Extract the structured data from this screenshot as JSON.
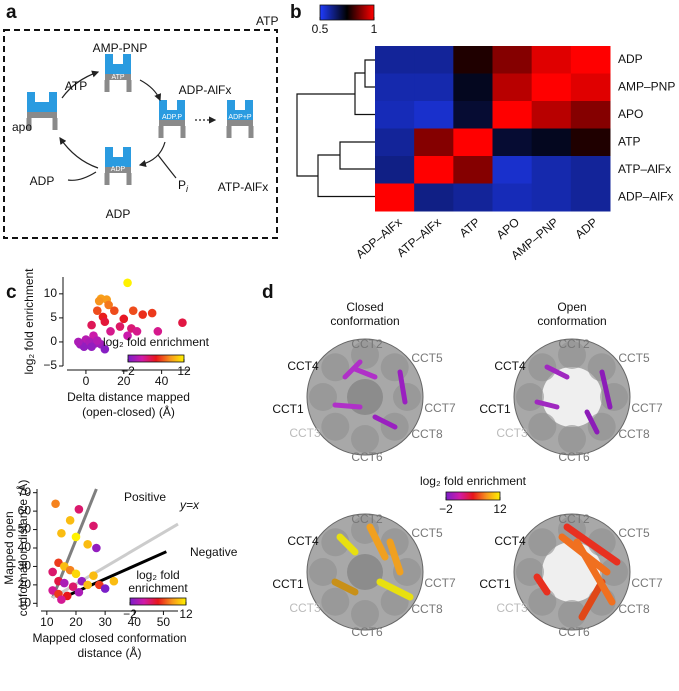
{
  "panel_labels": [
    "a",
    "b",
    "c",
    "d"
  ],
  "panel_a": {
    "corner_label": "ATP",
    "states": [
      "AMP-PNP",
      "ATP",
      "ADP-AlFx",
      "apo",
      "ATP-AlFx",
      "ADP",
      "ADP"
    ],
    "phosphate": "P",
    "phosphate_sub": "i",
    "inner_labels": [
      "ATP",
      "ADP.P",
      "ADP+P",
      "ADP"
    ]
  },
  "chart_data": [
    {
      "type": "heatmap",
      "x_labels": [
        "ADP–AlFx",
        "ATP–AlFx",
        "ATP",
        "APO",
        "AMP–PNP",
        "ADP"
      ],
      "y_labels": [
        "ADP",
        "AMP–PNP",
        "APO",
        "ATP",
        "ATP–AlFx",
        "ADP–AlFx"
      ],
      "values": [
        [
          0.6,
          0.6,
          0.78,
          0.88,
          0.97,
          1
        ],
        [
          0.58,
          0.58,
          0.72,
          0.93,
          1,
          0.97
        ],
        [
          0.57,
          0.55,
          0.7,
          1,
          0.93,
          0.88
        ],
        [
          0.6,
          0.88,
          1,
          0.7,
          0.72,
          0.78
        ],
        [
          0.62,
          1,
          0.88,
          0.55,
          0.58,
          0.6
        ],
        [
          1,
          0.62,
          0.6,
          0.57,
          0.58,
          0.6
        ]
      ],
      "colormap": [
        "#1f3cff",
        "#000000",
        "#ff0000"
      ],
      "colorbar": {
        "lim": [
          0.5,
          1
        ],
        "ticks": [
          0.5,
          1
        ]
      }
    },
    {
      "type": "scatter",
      "xlabel": [
        "Delta distance mapped",
        "(open-closed) (Å)"
      ],
      "ylabel": [
        "log₂ fold enrichment"
      ],
      "xlim": [
        -10,
        55
      ],
      "ylim": [
        -5,
        13.5
      ],
      "xticks": [
        0,
        20,
        40
      ],
      "yticks": [
        {
          "value": -5,
          "label": "−5"
        },
        0,
        5,
        10
      ],
      "x": [
        22,
        8,
        11,
        7,
        12,
        6,
        15,
        25,
        35,
        9,
        30,
        20,
        51,
        10,
        3,
        18,
        24,
        13,
        27,
        38,
        4,
        22,
        0,
        -3,
        -1,
        2,
        5,
        8,
        3,
        10,
        -4,
        6
      ],
      "values": [
        12.3,
        9,
        8.8,
        8.5,
        7.7,
        6.5,
        6.5,
        6.5,
        6,
        5.2,
        5.7,
        4.8,
        4,
        4.2,
        3.5,
        3.2,
        2.8,
        2.2,
        2.2,
        2.2,
        1.3,
        1.3,
        0.5,
        -0.5,
        -1,
        0,
        -0.3,
        -0.5,
        -1,
        -1.5,
        0,
        0.3
      ],
      "colormap": [
        "#7a1fc8",
        "#d01aa8",
        "#e8161b",
        "#f7941d",
        "#fff200"
      ],
      "colorbar": {
        "label": [
          "log₂ fold enrichment"
        ],
        "lim": [
          -2,
          12
        ],
        "ticks": [
          {
            "value": -2,
            "label": "−2"
          },
          12
        ]
      }
    },
    {
      "type": "scatter",
      "xlabel": [
        "Mapped closed conformation",
        "distance (Å)"
      ],
      "ylabel": [
        "Mapped open",
        "conformation distance (Å)"
      ],
      "xlim": [
        8,
        55
      ],
      "ylim": [
        8,
        72
      ],
      "xticks": [
        10,
        20,
        30,
        40,
        50
      ],
      "yticks": [
        10,
        20,
        30,
        40,
        50,
        60,
        70
      ],
      "x": [
        13,
        21,
        18,
        26,
        15,
        20,
        24,
        27,
        14,
        16,
        18,
        12,
        20,
        26,
        14,
        16,
        22,
        19,
        24,
        28,
        33,
        12,
        14,
        17,
        21,
        30,
        15
      ],
      "values": [
        64,
        61,
        55,
        52,
        48,
        46,
        42,
        40,
        32,
        30,
        28,
        27,
        26,
        25,
        22,
        21,
        22,
        19,
        20,
        20,
        22,
        17,
        15,
        14,
        16,
        18,
        12
      ],
      "z": [
        8,
        3,
        10,
        3,
        10,
        12,
        10,
        -1,
        6,
        10,
        8,
        3,
        11,
        10,
        4,
        0,
        -1,
        3,
        10,
        6,
        10,
        2,
        6,
        5,
        0,
        -2,
        2
      ],
      "lines": [
        {
          "name": "Positive",
          "color": "#7f7f7f",
          "x": [
            12,
            27
          ],
          "y": [
            13,
            72
          ]
        },
        {
          "name": "y=x",
          "color": "#cccccc",
          "x": [
            12,
            55
          ],
          "y": [
            13,
            53
          ]
        },
        {
          "name": "Negative",
          "color": "#000000",
          "x": [
            14,
            51
          ],
          "y": [
            12,
            38
          ]
        }
      ],
      "colormap": [
        "#7a1fc8",
        "#d01aa8",
        "#e8161b",
        "#f7941d",
        "#fff200"
      ],
      "colorbar": {
        "label": [
          "log₂ fold",
          "enrichment"
        ],
        "lim": [
          -2,
          12
        ],
        "ticks": [
          {
            "value": -2,
            "label": "−2"
          },
          12
        ]
      }
    }
  ],
  "panel_d": {
    "columns": [
      [
        "Closed",
        "conformation"
      ],
      [
        "Open",
        "conformation"
      ]
    ],
    "subunits": [
      "CCT2",
      "CCT5",
      "CCT7",
      "CCT8",
      "CCT6",
      "CCT3",
      "CCT1",
      "CCT4"
    ],
    "colormap": [
      "#7a1fc8",
      "#d01aa8",
      "#e8161b",
      "#f7941d",
      "#fff200"
    ],
    "colorbar": {
      "label": [
        "log₂ fold enrichment"
      ],
      "lim": [
        -2,
        12
      ],
      "ticks": [
        {
          "value": -2,
          "label": "−2"
        },
        12
      ]
    }
  }
}
